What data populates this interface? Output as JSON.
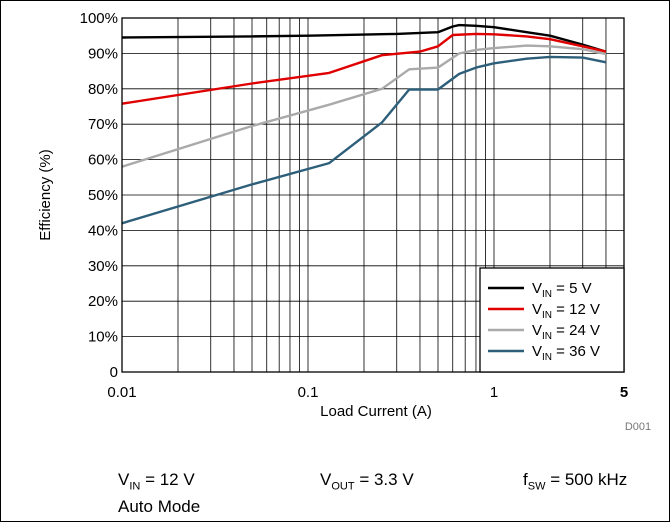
{
  "chart_data": {
    "type": "line",
    "xlabel": "Load Current (A)",
    "ylabel": "Efficiency (%)",
    "x_scale": "log",
    "xlim": [
      0.01,
      5
    ],
    "ylim": [
      0,
      100
    ],
    "x_ticks": [
      "0.01",
      "0.1",
      "1",
      "5"
    ],
    "y_ticks": [
      "0",
      "10%",
      "20%",
      "30%",
      "40%",
      "50%",
      "60%",
      "70%",
      "80%",
      "90%",
      "100%"
    ],
    "grid": true,
    "legend_position": "bottom-right",
    "figure_code": "D001",
    "series": [
      {
        "vin": "5 V",
        "color": "#000000",
        "points": [
          [
            0.01,
            94.5
          ],
          [
            0.05,
            94.8
          ],
          [
            0.1,
            95.0
          ],
          [
            0.2,
            95.3
          ],
          [
            0.3,
            95.5
          ],
          [
            0.5,
            96.0
          ],
          [
            0.6,
            97.6
          ],
          [
            0.65,
            98.0
          ],
          [
            0.8,
            97.8
          ],
          [
            1.0,
            97.4
          ],
          [
            1.5,
            96.0
          ],
          [
            2.0,
            95.0
          ],
          [
            3.0,
            92.5
          ],
          [
            4.0,
            90.5
          ]
        ]
      },
      {
        "vin": "12 V",
        "color": "#e00000",
        "points": [
          [
            0.01,
            75.8
          ],
          [
            0.05,
            81.5
          ],
          [
            0.13,
            84.5
          ],
          [
            0.25,
            89.5
          ],
          [
            0.4,
            90.5
          ],
          [
            0.5,
            92.0
          ],
          [
            0.6,
            95.2
          ],
          [
            0.8,
            95.5
          ],
          [
            1.0,
            95.4
          ],
          [
            1.5,
            94.8
          ],
          [
            2.0,
            94.0
          ],
          [
            3.0,
            92.0
          ],
          [
            4.0,
            90.5
          ]
        ]
      },
      {
        "vin": "24 V",
        "color": "#aaaaaa",
        "points": [
          [
            0.01,
            58.0
          ],
          [
            0.05,
            69.5
          ],
          [
            0.13,
            75.5
          ],
          [
            0.25,
            80.0
          ],
          [
            0.35,
            85.5
          ],
          [
            0.5,
            86.0
          ],
          [
            0.65,
            90.0
          ],
          [
            0.8,
            91.0
          ],
          [
            1.0,
            91.5
          ],
          [
            1.5,
            92.2
          ],
          [
            2.0,
            92.0
          ],
          [
            3.0,
            91.2
          ],
          [
            4.0,
            89.8
          ]
        ]
      },
      {
        "vin": "36 V",
        "color": "#2e5f7a",
        "points": [
          [
            0.01,
            42.0
          ],
          [
            0.05,
            53.0
          ],
          [
            0.13,
            59.0
          ],
          [
            0.25,
            70.5
          ],
          [
            0.35,
            79.8
          ],
          [
            0.5,
            79.8
          ],
          [
            0.65,
            84.2
          ],
          [
            0.8,
            86.0
          ],
          [
            1.0,
            87.2
          ],
          [
            1.5,
            88.5
          ],
          [
            2.0,
            89.0
          ],
          [
            3.0,
            88.8
          ],
          [
            4.0,
            87.5
          ]
        ]
      }
    ]
  },
  "legend": {
    "prefix": "V",
    "sub": "IN",
    "values": [
      "= 5 V",
      "= 12 V",
      "= 24 V",
      "= 36 V"
    ]
  },
  "conditions": {
    "vin_prefix": "V",
    "vin_sub": "IN",
    "vin_value": "= 12 V",
    "vout_prefix": "V",
    "vout_sub": "OUT",
    "vout_value": "= 3.3 V",
    "fsw_prefix": "f",
    "fsw_sub": "SW",
    "fsw_value": "= 500 kHz",
    "mode": "Auto Mode"
  }
}
